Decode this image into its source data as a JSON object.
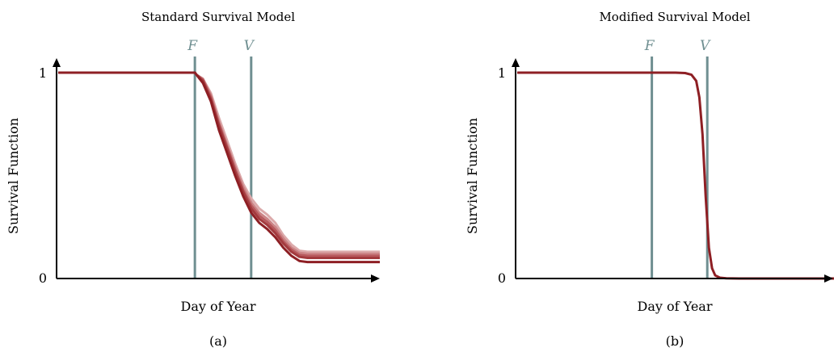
{
  "chart_data": [
    {
      "type": "line",
      "panel": "(a)",
      "title": "Standard Survival Model",
      "xlabel": "Day of Year",
      "ylabel": "Survival Function",
      "y_ticks": [
        "0",
        "1"
      ],
      "ylim": [
        0,
        1
      ],
      "markers": [
        {
          "label": "F",
          "x": 0.425
        },
        {
          "label": "V",
          "x": 0.6
        }
      ],
      "x": [
        0,
        0.425,
        0.43,
        0.45,
        0.475,
        0.5,
        0.525,
        0.55,
        0.575,
        0.6,
        0.625,
        0.65,
        0.675,
        0.7,
        0.725,
        0.75,
        0.775,
        0.8,
        0.85,
        0.9,
        0.95,
        1.0
      ],
      "series": [
        {
          "values": [
            1,
            1,
            0.99,
            0.95,
            0.86,
            0.72,
            0.61,
            0.5,
            0.4,
            0.32,
            0.27,
            0.24,
            0.2,
            0.15,
            0.11,
            0.085,
            0.08,
            0.08,
            0.08,
            0.08,
            0.08,
            0.08
          ],
          "color": "#8e1f24"
        },
        {
          "values": [
            1,
            1,
            0.99,
            0.96,
            0.87,
            0.74,
            0.63,
            0.52,
            0.42,
            0.34,
            0.29,
            0.26,
            0.22,
            0.17,
            0.13,
            0.105,
            0.1,
            0.1,
            0.1,
            0.1,
            0.1,
            0.1
          ],
          "color": "#a33a3e"
        },
        {
          "values": [
            1,
            1,
            0.99,
            0.965,
            0.88,
            0.75,
            0.64,
            0.53,
            0.43,
            0.355,
            0.305,
            0.275,
            0.235,
            0.18,
            0.14,
            0.115,
            0.11,
            0.11,
            0.11,
            0.11,
            0.11,
            0.11
          ],
          "color": "#b85a5e"
        },
        {
          "values": [
            1,
            1,
            0.99,
            0.97,
            0.89,
            0.76,
            0.65,
            0.545,
            0.445,
            0.37,
            0.32,
            0.29,
            0.25,
            0.195,
            0.15,
            0.125,
            0.12,
            0.12,
            0.12,
            0.12,
            0.12,
            0.12
          ],
          "color": "#cc8587"
        },
        {
          "values": [
            1,
            1,
            0.99,
            0.97,
            0.9,
            0.78,
            0.67,
            0.56,
            0.46,
            0.39,
            0.34,
            0.31,
            0.27,
            0.21,
            0.165,
            0.135,
            0.13,
            0.13,
            0.13,
            0.13,
            0.13,
            0.13
          ],
          "color": "#dcaaab"
        }
      ]
    },
    {
      "type": "line",
      "panel": "(b)",
      "title": "Modified Survival Model",
      "xlabel": "Day of Year",
      "ylabel": "Survival Function",
      "y_ticks": [
        "0",
        "1"
      ],
      "ylim": [
        0,
        1
      ],
      "markers": [
        {
          "label": "F",
          "x": 0.425
        },
        {
          "label": "V",
          "x": 0.6
        }
      ],
      "x": [
        0,
        0.5,
        0.53,
        0.55,
        0.565,
        0.575,
        0.585,
        0.595,
        0.605,
        0.615,
        0.625,
        0.64,
        0.66,
        0.7,
        1.0
      ],
      "series": [
        {
          "values": [
            1,
            1,
            0.998,
            0.99,
            0.96,
            0.88,
            0.7,
            0.4,
            0.15,
            0.05,
            0.015,
            0.004,
            0.001,
            0,
            0
          ],
          "color": "#8e1f24"
        }
      ]
    }
  ],
  "captions": [
    "(a)",
    "(b)"
  ],
  "colors": {
    "marker": "#6f8f91",
    "axis": "#000000"
  }
}
